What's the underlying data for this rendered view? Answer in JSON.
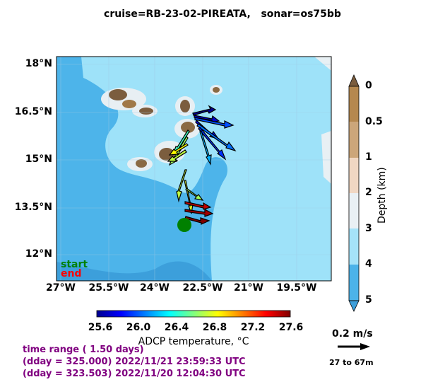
{
  "title": "cruise=RB-23-02-PIREATA,   sonar=os75bb",
  "lat_ticks": [
    "18°N",
    "16.5°N",
    "15°N",
    "13.5°N",
    "12°N"
  ],
  "lon_ticks": [
    "27°W",
    "25.5°W",
    "24°W",
    "22.5°W",
    "21°W",
    "19.5°W"
  ],
  "depth_colorbar": {
    "ticks": [
      "0",
      "0.5",
      "1",
      "2",
      "3",
      "4",
      "5"
    ],
    "label": "Depth (km)"
  },
  "temp_colorbar": {
    "ticks": [
      "25.6",
      "26.0",
      "26.4",
      "26.8",
      "27.2",
      "27.6"
    ],
    "label": "ADCP temperature, °C"
  },
  "legend": {
    "start": "start",
    "end": "end",
    "start_color": "#008000",
    "end_color": "#ff0000"
  },
  "info": {
    "line1": "time range ( 1.50 days)",
    "line2": "(dday = 325.000) 2022/11/21 23:59:33 UTC",
    "line3": "(dday = 323.503) 2022/11/20 12:04:30 UTC",
    "color": "#800080"
  },
  "scale": {
    "label": "0.2 m/s",
    "range": "27 to 67m"
  },
  "colors": {
    "land": "#b5884f",
    "ocean_deep": "#4aa9e0",
    "ocean_shallow": "#9fe0f8"
  }
}
